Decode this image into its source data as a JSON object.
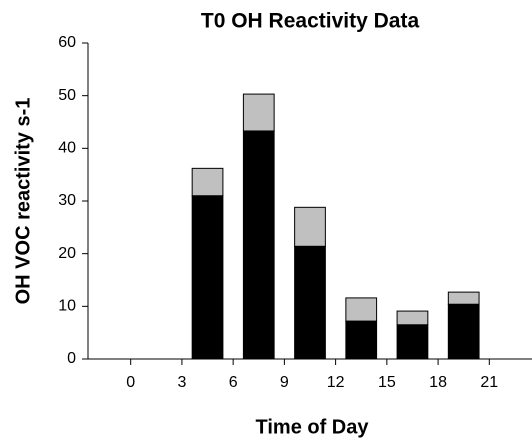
{
  "chart_data": {
    "type": "stacked_bar",
    "title": "T0 OH Reactivity Data",
    "x_label": "Time of Day",
    "y_label": "OH VOC reactivity s-1",
    "x": [
      4.5,
      7.5,
      10.5,
      13.5,
      16.5,
      19.5
    ],
    "series": [
      {
        "color": "#000000",
        "values": [
          31,
          43.3,
          21.4,
          7.2,
          6.5,
          10.4
        ]
      },
      {
        "color": "#c0c0c0",
        "values": [
          5.2,
          7.0,
          7.4,
          4.4,
          2.6,
          2.3
        ]
      }
    ],
    "xlim": [
      -2.5,
      23.5
    ],
    "xticks": [
      0,
      3,
      6,
      9,
      12,
      15,
      18,
      21
    ],
    "ylim": [
      0,
      60
    ],
    "yticks": [
      0,
      10,
      20,
      30,
      40,
      50,
      60
    ]
  }
}
